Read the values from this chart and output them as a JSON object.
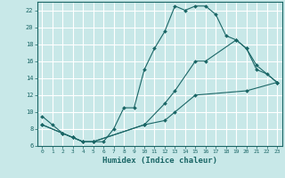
{
  "xlabel": "Humidex (Indice chaleur)",
  "bg_color": "#c8e8e8",
  "grid_color": "#ffffff",
  "line_color": "#1a6666",
  "xlim": [
    -0.5,
    23.5
  ],
  "ylim": [
    6,
    23
  ],
  "xticks": [
    0,
    1,
    2,
    3,
    4,
    5,
    6,
    7,
    8,
    9,
    10,
    11,
    12,
    13,
    14,
    15,
    16,
    17,
    18,
    19,
    20,
    21,
    22,
    23
  ],
  "yticks": [
    6,
    8,
    10,
    12,
    14,
    16,
    18,
    20,
    22
  ],
  "line1_x": [
    0,
    1,
    2,
    3,
    4,
    5,
    6,
    7,
    8,
    9,
    10,
    11,
    12,
    13,
    14,
    15,
    16,
    17,
    18,
    19,
    20,
    21,
    22,
    23
  ],
  "line1_y": [
    9.5,
    8.5,
    7.5,
    7.0,
    6.5,
    6.5,
    6.5,
    8.0,
    10.5,
    10.5,
    15.0,
    17.5,
    19.5,
    22.5,
    22.0,
    22.5,
    22.5,
    21.5,
    19.0,
    18.5,
    17.5,
    15.0,
    14.5,
    13.5
  ],
  "line2_x": [
    0,
    2,
    3,
    4,
    5,
    10,
    12,
    13,
    15,
    16,
    19,
    20,
    21,
    23
  ],
  "line2_y": [
    8.5,
    7.5,
    7.0,
    6.5,
    6.5,
    8.5,
    11.0,
    12.5,
    16.0,
    16.0,
    18.5,
    17.5,
    15.5,
    13.5
  ],
  "line3_x": [
    0,
    2,
    3,
    4,
    5,
    10,
    12,
    13,
    15,
    20,
    23
  ],
  "line3_y": [
    8.5,
    7.5,
    7.0,
    6.5,
    6.5,
    8.5,
    9.0,
    10.0,
    12.0,
    12.5,
    13.5
  ]
}
